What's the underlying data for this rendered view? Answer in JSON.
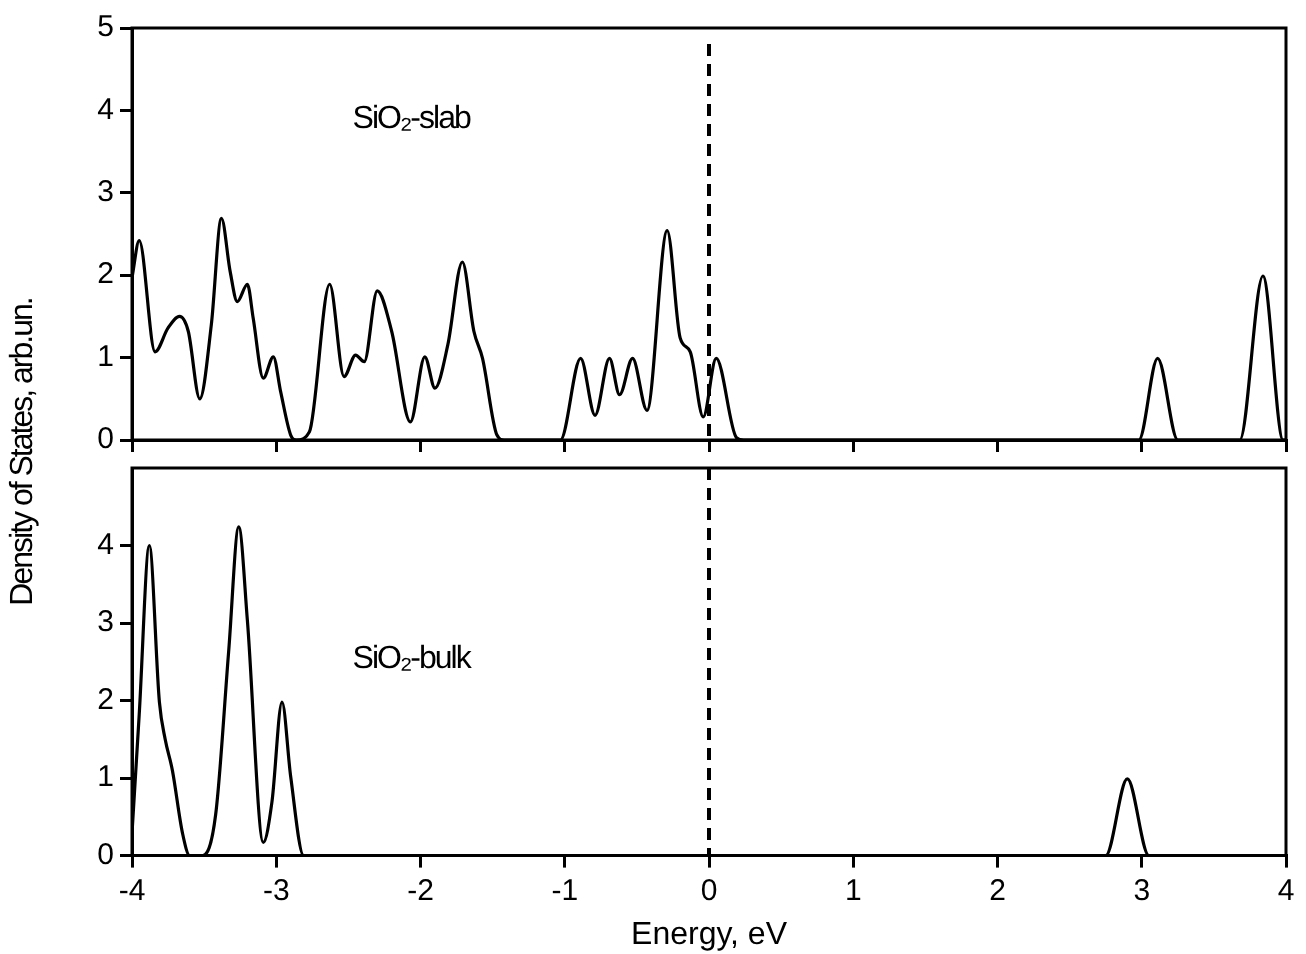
{
  "chart_data": [
    {
      "type": "line",
      "ylabel": "Density of States, arb.un.",
      "annotations": [
        "SiO₂-slab"
      ],
      "xlim": [
        -4,
        4
      ],
      "xticks": [
        -4,
        -3,
        -2,
        -1,
        0,
        1,
        2,
        3,
        4
      ],
      "ylim": [
        0,
        5
      ],
      "yticks": [
        0,
        1,
        2,
        3,
        4,
        5
      ],
      "tick_labels": "y",
      "grid": false,
      "legend": false,
      "marker": "none",
      "line_style": "solid",
      "ref_lines": [
        {
          "axis": "x",
          "value": 0,
          "line_style": "dashed",
          "color": "#000000"
        }
      ],
      "series": [
        {
          "color": "#000000",
          "x": [
            -4,
            -3.95,
            -3.84,
            -3.75,
            -3.67,
            -3.61,
            -3.53,
            -3.45,
            -3.38,
            -3.32,
            -3.27,
            -3.2,
            -3.16,
            -3.09,
            -3.02,
            -2.97,
            -2.9,
            -2.86,
            -2.77,
            -2.63,
            -2.53,
            -2.45,
            -2.39,
            -2.3,
            -2.2,
            -2.07,
            -1.97,
            -1.9,
            -1.81,
            -1.71,
            -1.63,
            -1.57,
            -1.47,
            -1.42,
            -1.03,
            -0.89,
            -0.79,
            -0.69,
            -0.62,
            -0.53,
            -0.43,
            -0.29,
            -0.2,
            -0.13,
            -0.04,
            0.05,
            0.19,
            0.24,
            2.98,
            3.11,
            3.25,
            3.68,
            3.84,
            3.98,
            4
          ],
          "values": [
            1.97,
            2.42,
            1.07,
            1.36,
            1.5,
            1.32,
            0.5,
            1.4,
            2.69,
            2.05,
            1.68,
            1.89,
            1.48,
            0.75,
            1.01,
            0.59,
            0.06,
            0,
            0.1,
            1.89,
            0.77,
            1.03,
            0.95,
            1.81,
            1.32,
            0.22,
            1.01,
            0.63,
            1.16,
            2.16,
            1.32,
            0.99,
            0.06,
            0,
            0,
            0.99,
            0.3,
            0.99,
            0.55,
            0.99,
            0.36,
            2.54,
            1.24,
            1.07,
            0.28,
            0.99,
            0.03,
            0,
            0,
            0.99,
            0,
            0,
            1.99,
            0,
            0
          ]
        }
      ]
    },
    {
      "type": "line",
      "xlabel": "Energy, eV",
      "annotations": [
        "SiO₂-bulk"
      ],
      "xlim": [
        -4,
        4
      ],
      "xticks": [
        -4,
        -3,
        -2,
        -1,
        0,
        1,
        2,
        3,
        4
      ],
      "ylim": [
        0,
        5
      ],
      "yticks": [
        0,
        1,
        2,
        3,
        4
      ],
      "grid": false,
      "legend": false,
      "marker": "none",
      "line_style": "solid",
      "ref_lines": [
        {
          "axis": "x",
          "value": 0,
          "line_style": "dashed",
          "color": "#000000"
        }
      ],
      "series": [
        {
          "color": "#000000",
          "x": [
            -4,
            -3.95,
            -3.88,
            -3.81,
            -3.77,
            -3.72,
            -3.65,
            -3.6,
            -3.51,
            -3.42,
            -3.33,
            -3.26,
            -3.2,
            -3.09,
            -3.03,
            -2.96,
            -2.9,
            -2.81,
            2.75,
            2.9,
            3.05,
            4
          ],
          "values": [
            0.29,
            1.82,
            4.0,
            1.98,
            1.5,
            1.1,
            0.29,
            0,
            0,
            0.53,
            2.63,
            4.24,
            3.03,
            0.17,
            0.69,
            1.98,
            1.02,
            0,
            0,
            0.99,
            0,
            0
          ]
        }
      ]
    }
  ]
}
